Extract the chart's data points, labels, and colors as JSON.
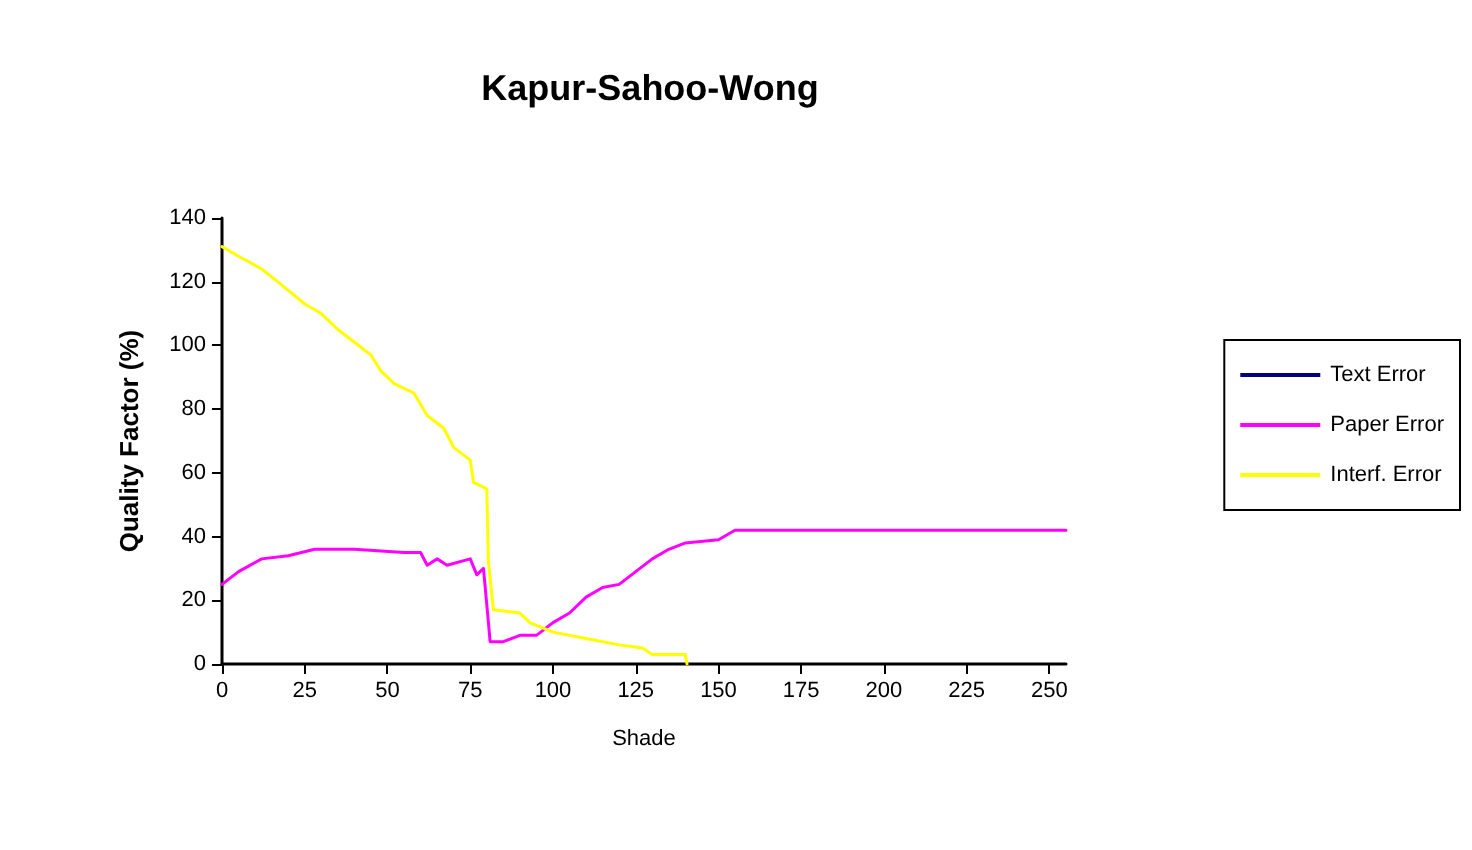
{
  "chart_data": {
    "type": "line",
    "title": "Kapur-Sahoo-Wong",
    "xlabel": "Shade",
    "ylabel": "Quality Factor (%)",
    "xlim": [
      0,
      255
    ],
    "xticks": [
      0,
      25,
      50,
      75,
      100,
      125,
      150,
      175,
      200,
      225,
      250
    ],
    "ylim": [
      0,
      140
    ],
    "yticks": [
      0,
      20,
      40,
      60,
      80,
      100,
      120,
      140
    ],
    "grid": false,
    "legend": "right",
    "marker": "none",
    "line_style": "solid",
    "series": [
      {
        "name": "Text Error",
        "color": "#000080"
      },
      {
        "name": "Paper Error",
        "color": "#ff00ff",
        "x": [
          0,
          5,
          12,
          20,
          28,
          40,
          55,
          60,
          62,
          65,
          68,
          75,
          77,
          79,
          80.5,
          81,
          85,
          90,
          95,
          100,
          105,
          110,
          115,
          120,
          125,
          130,
          135,
          140,
          150,
          155,
          255
        ],
        "values": [
          25,
          29,
          33,
          34,
          36,
          36,
          35,
          35,
          31,
          33,
          31,
          33,
          28,
          30,
          13,
          7,
          7,
          9,
          9,
          13,
          16,
          21,
          24,
          25,
          29,
          33,
          36,
          38,
          39,
          42,
          42
        ]
      },
      {
        "name": "Interf. Error",
        "color": "#ffff00",
        "x": [
          0,
          5,
          12,
          18,
          25,
          30,
          35,
          40,
          45,
          48,
          52,
          58,
          62,
          67,
          70,
          75,
          76,
          80,
          80.5,
          82,
          90,
          93,
          100,
          110,
          120,
          127,
          130,
          140,
          140.5
        ],
        "values": [
          131,
          128,
          124,
          119,
          113,
          110,
          105,
          101,
          97,
          92,
          88,
          85,
          78,
          74,
          68,
          64,
          57,
          55,
          32,
          17,
          16,
          13,
          10,
          8,
          6,
          5,
          3,
          3,
          0
        ]
      }
    ]
  }
}
